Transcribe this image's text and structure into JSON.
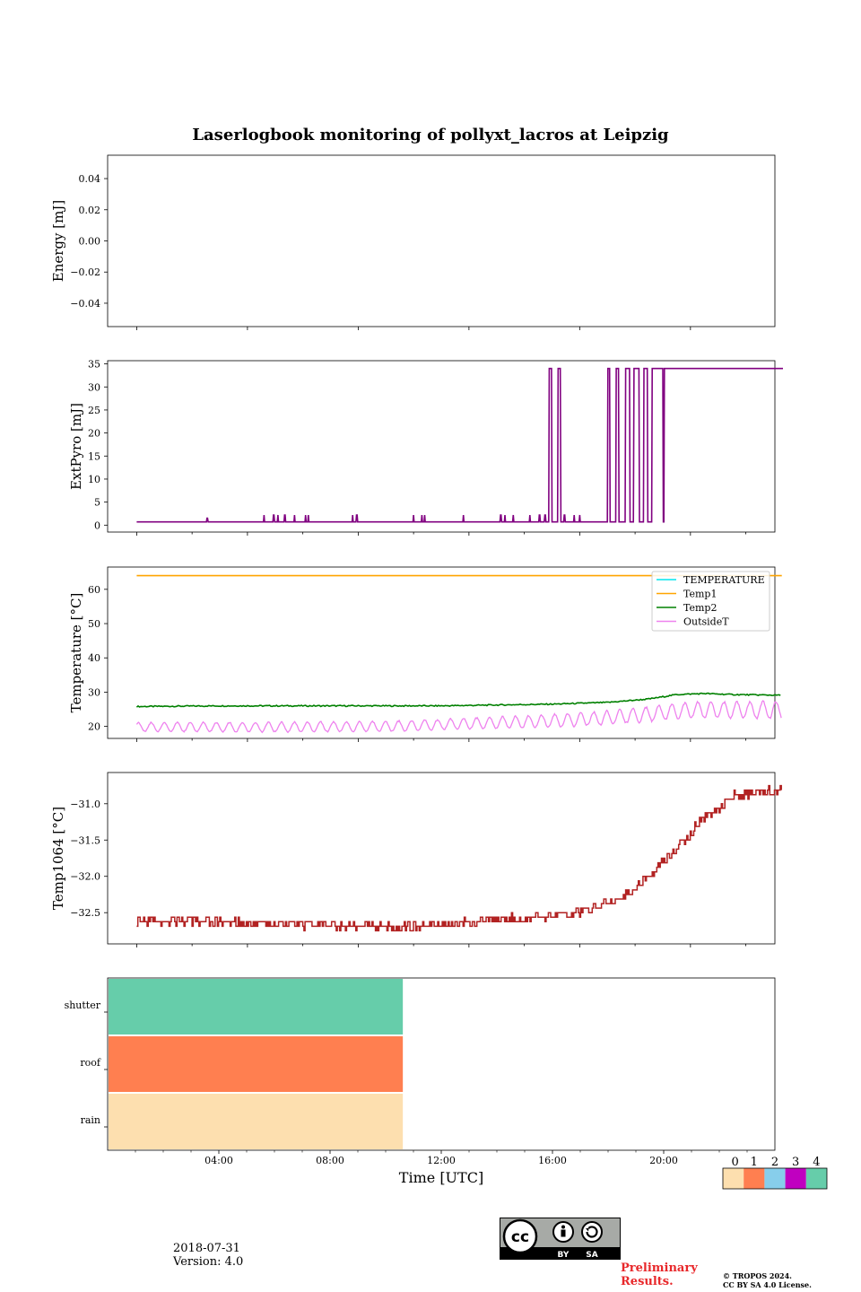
{
  "title": "Laserlogbook monitoring of pollyxt_lacros at Leipzig",
  "footer": {
    "date": "2018-07-31",
    "version": "Version: 4.0",
    "preliminary_line1": "Preliminary",
    "preliminary_line2": "Results.",
    "copyright_line1": "© TROPOS 2024.",
    "copyright_line2": "CC BY SA 4.0 License.",
    "license_labels": [
      "BY",
      "SA"
    ],
    "cc_text": "cc"
  },
  "colors": {
    "extpyro": "#800080",
    "temperature": "#00e5ee",
    "temp1": "#ffa500",
    "temp2": "#008000",
    "outsideT": "#ee82ee",
    "temp1064": "#b22222"
  },
  "chart_data": [
    {
      "type": "line",
      "ylabel": "Energy [mJ]",
      "ylim": [
        -0.055,
        0.055
      ],
      "yticks": [
        "0.04",
        "0.02",
        "0.00",
        "−0.02",
        "−0.04"
      ],
      "ytick_values": [
        0.04,
        0.02,
        0.0,
        -0.02,
        -0.04
      ],
      "series": []
    },
    {
      "type": "line",
      "ylabel": "ExtPyro [mJ]",
      "ylim": [
        -1.5,
        35.7
      ],
      "yticks": [
        "35",
        "30",
        "25",
        "20",
        "15",
        "10",
        "5",
        "0"
      ],
      "ytick_values": [
        35,
        30,
        25,
        20,
        15,
        10,
        5,
        0
      ],
      "baseline": 0.7,
      "high": 34,
      "spikes_low": [
        {
          "t": 3.55,
          "v": 1.5
        },
        {
          "t": 5.6,
          "v": 2.2
        },
        {
          "t": 5.95,
          "v": 2.2
        },
        {
          "t": 6.1,
          "v": 2.2
        },
        {
          "t": 6.35,
          "v": 2.2
        },
        {
          "t": 6.7,
          "v": 2.2
        },
        {
          "t": 7.1,
          "v": 2.2
        },
        {
          "t": 7.2,
          "v": 2.2
        },
        {
          "t": 8.8,
          "v": 2.2
        },
        {
          "t": 8.95,
          "v": 2.2
        },
        {
          "t": 11.0,
          "v": 2.2
        },
        {
          "t": 11.3,
          "v": 2.2
        },
        {
          "t": 11.4,
          "v": 2.2
        },
        {
          "t": 12.8,
          "v": 2.2
        },
        {
          "t": 14.15,
          "v": 2.2
        },
        {
          "t": 14.3,
          "v": 2.2
        },
        {
          "t": 14.6,
          "v": 2.2
        },
        {
          "t": 15.2,
          "v": 2.2
        },
        {
          "t": 15.55,
          "v": 2.2
        },
        {
          "t": 15.75,
          "v": 2.2
        },
        {
          "t": 16.45,
          "v": 2.2
        },
        {
          "t": 16.8,
          "v": 2.2
        },
        {
          "t": 17.0,
          "v": 2.2
        }
      ],
      "spikes_high": [
        {
          "t0": 15.88,
          "t1": 15.98
        },
        {
          "t0": 16.2,
          "t1": 16.3
        },
        {
          "t0": 18.0,
          "t1": 18.08
        },
        {
          "t0": 18.3,
          "t1": 18.4
        },
        {
          "t0": 18.65,
          "t1": 18.8
        },
        {
          "t0": 18.95,
          "t1": 19.15
        },
        {
          "t0": 19.3,
          "t1": 19.45
        },
        {
          "t0": 19.6,
          "t1": 20.0
        }
      ],
      "high_from": 20.05,
      "high_until": 24.35
    },
    {
      "type": "line",
      "ylabel": "Temperature [°C]",
      "ylim": [
        16.5,
        66.5
      ],
      "yticks": [
        "60",
        "50",
        "40",
        "30",
        "20"
      ],
      "ytick_values": [
        60,
        50,
        40,
        30,
        20
      ],
      "legend": [
        "TEMPERATURE",
        "Temp1",
        "Temp2",
        "OutsideT"
      ],
      "legend_position": "top-right",
      "temp1_value": 64,
      "temp2_points": [
        [
          1,
          25.8
        ],
        [
          4,
          26.0
        ],
        [
          8,
          26.0
        ],
        [
          12,
          26.0
        ],
        [
          16,
          26.5
        ],
        [
          18,
          27.0
        ],
        [
          19.5,
          28.0
        ],
        [
          20.5,
          29.3
        ],
        [
          21.5,
          29.6
        ],
        [
          22.5,
          29.3
        ],
        [
          24.3,
          29.1
        ]
      ],
      "outsideT_base": [
        [
          1,
          19.8
        ],
        [
          6,
          19.8
        ],
        [
          10,
          20.0
        ],
        [
          13,
          20.8
        ],
        [
          16,
          21.6
        ],
        [
          18,
          22.5
        ],
        [
          19.5,
          23.6
        ],
        [
          21,
          24.8
        ],
        [
          24.3,
          24.8
        ]
      ],
      "outsideT_amplitude": [
        [
          1,
          1.3
        ],
        [
          12,
          1.5
        ],
        [
          18,
          2.0
        ],
        [
          24.3,
          2.5
        ]
      ]
    },
    {
      "type": "line",
      "ylabel": "Temp1064 [°C]",
      "ylim": [
        -32.93,
        -30.57
      ],
      "yticks": [
        "−31.0",
        "−31.5",
        "−32.0",
        "−32.5"
      ],
      "ytick_values": [
        -31.0,
        -31.5,
        -32.0,
        -32.5
      ],
      "points": [
        [
          1.0,
          -32.6
        ],
        [
          8.0,
          -32.68
        ],
        [
          10.5,
          -32.7
        ],
        [
          12.0,
          -32.65
        ],
        [
          14.0,
          -32.6
        ],
        [
          16.0,
          -32.55
        ],
        [
          17.5,
          -32.45
        ],
        [
          18.5,
          -32.3
        ],
        [
          19.5,
          -32.0
        ],
        [
          20.5,
          -31.6
        ],
        [
          21.5,
          -31.2
        ],
        [
          22.5,
          -30.9
        ],
        [
          24.3,
          -30.8
        ]
      ]
    },
    {
      "type": "heatmap",
      "rows": [
        "shutter",
        "roof",
        "rain"
      ],
      "row_values": [
        4,
        1,
        0
      ],
      "filled_until": 10.65,
      "xlabel": "Time [UTC]",
      "xticks": [
        "04:00",
        "08:00",
        "12:00",
        "16:00",
        "20:00"
      ],
      "xtick_values": [
        4,
        8,
        12,
        16,
        20
      ],
      "xlim": [
        0,
        24
      ],
      "colorbar": {
        "labels": [
          "0",
          "1",
          "2",
          "3",
          "4"
        ],
        "colors": [
          "#fddfaf",
          "#ff7f50",
          "#87ceeb",
          "#c000c0",
          "#66cdaa"
        ]
      }
    }
  ]
}
